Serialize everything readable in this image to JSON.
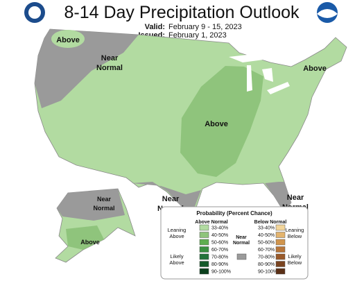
{
  "header": {
    "title": "8-14 Day Precipitation Outlook",
    "valid_label": "Valid:",
    "valid": "February 9 - 15, 2023",
    "issued_label": "Issued:",
    "issued": "February 1, 2023"
  },
  "map_labels": [
    {
      "lines": [
        "Above"
      ]
    },
    {
      "lines": [
        "Near",
        "Normal"
      ]
    },
    {
      "lines": [
        "Above"
      ]
    },
    {
      "lines": [
        "Above"
      ]
    },
    {
      "lines": [
        "Near",
        "Normal"
      ]
    },
    {
      "lines": [
        "Near",
        "Normal"
      ]
    },
    {
      "lines": [
        "Near",
        "Normal"
      ]
    },
    {
      "lines": [
        "Above"
      ]
    }
  ],
  "legend": {
    "title": "Probability (Percent Chance)",
    "above_header": "Above Normal",
    "below_header": "Below Normal",
    "ranges": [
      "33-40%",
      "40-50%",
      "50-60%",
      "60-70%",
      "70-80%",
      "80-90%",
      "90-100%"
    ],
    "near_normal": [
      "Near",
      "Normal"
    ],
    "leaning_above": [
      "Leaning",
      "Above"
    ],
    "likely_above": [
      "Likely",
      "Above"
    ],
    "leaning_below": [
      "Leaning",
      "Below"
    ],
    "likely_below": [
      "Likely",
      "Below"
    ]
  }
}
